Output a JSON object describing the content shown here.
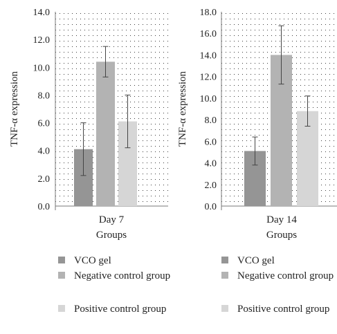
{
  "chart_data": [
    {
      "type": "bar",
      "categories": [
        "Day 7"
      ],
      "xlabel": "Groups",
      "ylabel": "TNF-α expression",
      "ylim": [
        0,
        14
      ],
      "yticks": [
        "0.0",
        "2.0",
        "4.0",
        "6.0",
        "8.0",
        "10.0",
        "12.0",
        "14.0"
      ],
      "grid": "dotted",
      "legend": "bottom",
      "series": [
        {
          "name": "VCO gel",
          "color": "#959595",
          "values": [
            4.1
          ],
          "error": [
            1.9
          ]
        },
        {
          "name": "Negative control group",
          "color": "#b3b3b3",
          "values": [
            10.4
          ],
          "error": [
            1.1
          ]
        },
        {
          "name": "Positive control group",
          "color": "#d6d6d6",
          "values": [
            6.1
          ],
          "error": [
            1.9
          ]
        }
      ]
    },
    {
      "type": "bar",
      "categories": [
        "Day 14"
      ],
      "xlabel": "Groups",
      "ylabel": "TNF-α expression",
      "ylim": [
        0,
        18
      ],
      "yticks": [
        "0.0",
        "2.0",
        "4.0",
        "6.0",
        "8.0",
        "10.0",
        "12.0",
        "14.0",
        "16.0",
        "18.0"
      ],
      "grid": "dotted",
      "legend": "bottom",
      "series": [
        {
          "name": "VCO gel",
          "color": "#959595",
          "values": [
            5.1
          ],
          "error": [
            1.3
          ]
        },
        {
          "name": "Negative control group",
          "color": "#b3b3b3",
          "values": [
            14.0
          ],
          "error": [
            2.7
          ]
        },
        {
          "name": "Positive control group",
          "color": "#d6d6d6",
          "values": [
            8.8
          ],
          "error": [
            1.4
          ]
        }
      ]
    }
  ],
  "legends": [
    {
      "items": [
        {
          "label": "VCO gel",
          "color": "#959595"
        },
        {
          "label": "Negative control group",
          "color": "#b3b3b3"
        },
        {
          "label": "Positive control group",
          "color": "#d6d6d6"
        }
      ]
    },
    {
      "items": [
        {
          "label": "VCO gel",
          "color": "#959595"
        },
        {
          "label": "Negative control group",
          "color": "#b3b3b3"
        },
        {
          "label": "Positive control group",
          "color": "#d6d6d6"
        }
      ]
    }
  ]
}
